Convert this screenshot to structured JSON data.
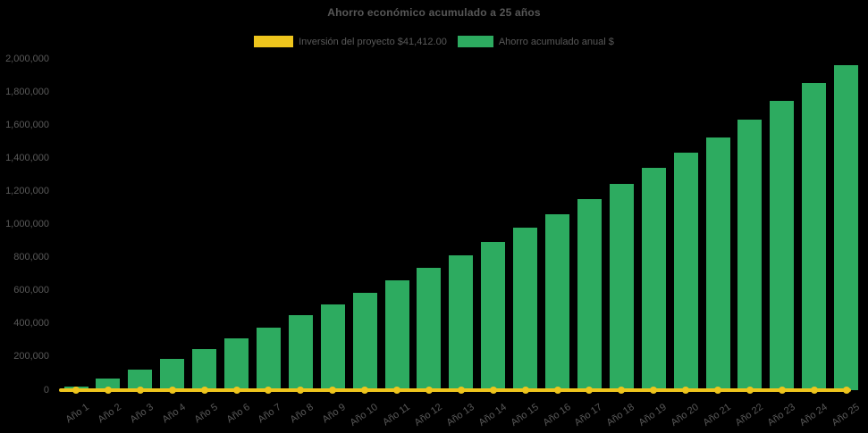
{
  "title": "Ahorro económico acumulado a 25 años",
  "colors": {
    "background": "#000000",
    "bar_green": "#2dab60",
    "line_yellow": "#eec51d",
    "text_gray": "#595959",
    "title_gray": "#575757"
  },
  "legend": [
    {
      "label": "Inversión del proyecto $41,412.00",
      "color": "#eec51d",
      "series": "investment"
    },
    {
      "label": "Ahorro acumulado anual $",
      "color": "#2dab60",
      "series": "savings"
    }
  ],
  "chart_data": {
    "type": "bar",
    "title": "Ahorro económico acumulado a 25 años",
    "xlabel": "",
    "ylabel": "",
    "ylim": [
      0,
      2000000
    ],
    "ytick_step": 200000,
    "ytick_labels": [
      "0",
      "200,000",
      "400,000",
      "600,000",
      "800,000",
      "1,000,000",
      "1,200,000",
      "1,400,000",
      "1,600,000",
      "1,800,000",
      "2,000,000"
    ],
    "grid": false,
    "legend_position": "top",
    "x_tick_rotation": -35,
    "categories": [
      "Año 1",
      "Año 2",
      "Año 3",
      "Año 4",
      "Año 5",
      "Año 6",
      "Año 7",
      "Año 8",
      "Año 9",
      "Año 10",
      "Año 11",
      "Año 12",
      "Año 13",
      "Año 14",
      "Año 15",
      "Año 16",
      "Año 17",
      "Año 18",
      "Año 19",
      "Año 20",
      "Año 21",
      "Año 22",
      "Año 23",
      "Año 24",
      "Año 25"
    ],
    "series": [
      {
        "name": "Inversión del proyecto $41,412.00",
        "type": "line",
        "color": "#eec51d",
        "values": [
          41412,
          41412,
          41412,
          41412,
          41412,
          41412,
          41412,
          41412,
          41412,
          41412,
          41412,
          41412,
          41412,
          41412,
          41412,
          41412,
          41412,
          41412,
          41412,
          41412,
          41412,
          41412,
          41412,
          41412,
          41412
        ]
      },
      {
        "name": "Ahorro acumulado anual $",
        "type": "bar",
        "color": "#2dab60",
        "values": [
          20000,
          70000,
          125000,
          190000,
          250000,
          312000,
          378000,
          452000,
          519000,
          589000,
          663000,
          741000,
          815000,
          894000,
          983000,
          1062000,
          1154000,
          1246000,
          1341000,
          1432000,
          1527000,
          1632000,
          1745000,
          1852000,
          1961000
        ]
      }
    ]
  }
}
